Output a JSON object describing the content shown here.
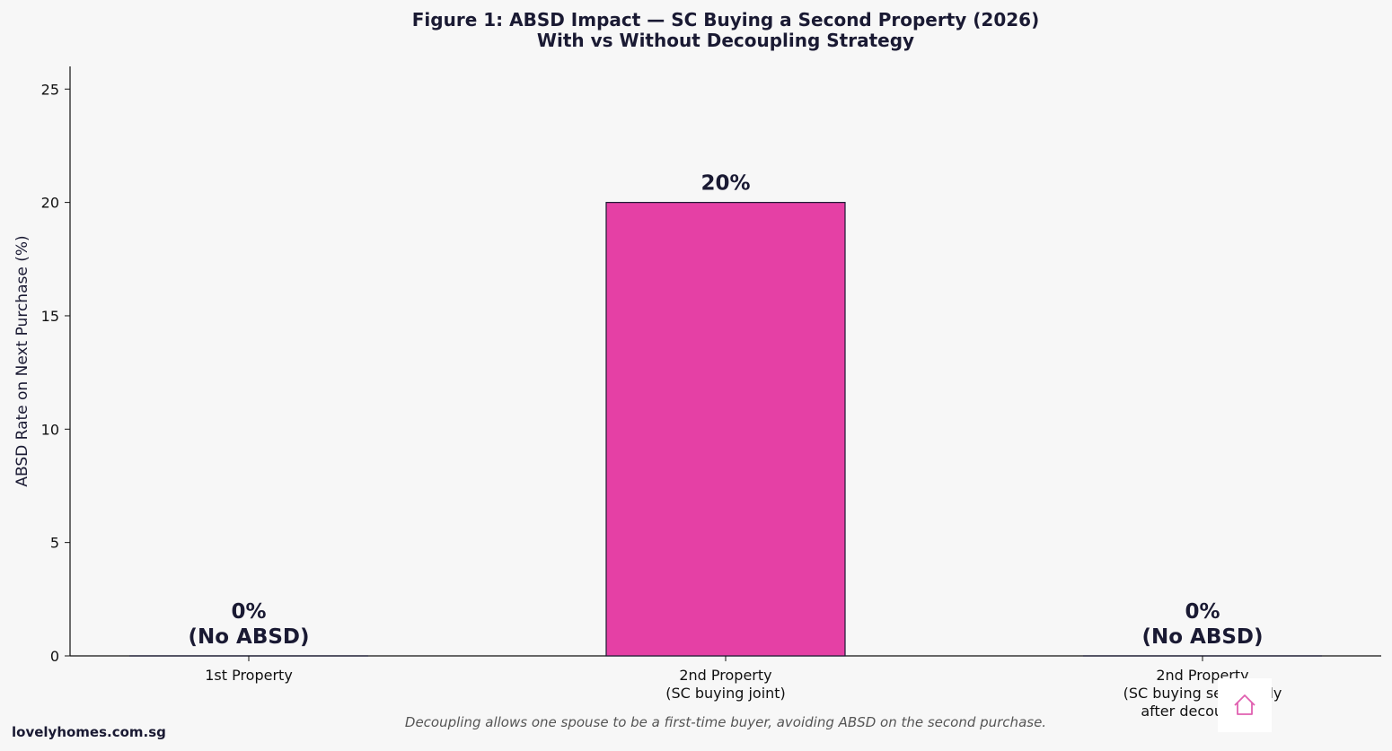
{
  "chart_data": {
    "type": "bar",
    "title_lines": [
      "Figure 1: ABSD Impact — SC Buying a Second Property (2026)",
      "With vs Without Decoupling Strategy"
    ],
    "xlabel": "",
    "ylabel": "ABSD Rate on Next Purchase (%)",
    "ylim": [
      0,
      26
    ],
    "yticks": [
      0,
      5,
      10,
      15,
      20,
      25
    ],
    "categories": [
      [
        "1st Property"
      ],
      [
        "2nd Property",
        "(SC buying joint)"
      ],
      [
        "2nd Property",
        "(SC buying separately",
        "after decoupling)"
      ]
    ],
    "values": [
      0,
      20,
      0
    ],
    "value_labels": [
      [
        "0%",
        "(No ABSD)"
      ],
      [
        "20%"
      ],
      [
        "0%",
        "(No ABSD)"
      ]
    ],
    "bar_color": "#e540a5",
    "grid": false,
    "legend": "none"
  },
  "caption": "Decoupling allows one spouse to be a first-time buyer, avoiding ABSD on the second purchase.",
  "watermark": "lovelyhomes.com.sg",
  "logo_icon": "house-icon",
  "colors": {
    "background": "#f7f7f7",
    "text": "#1a1a33",
    "accent": "#e540a5",
    "logo": "#e060b0"
  }
}
